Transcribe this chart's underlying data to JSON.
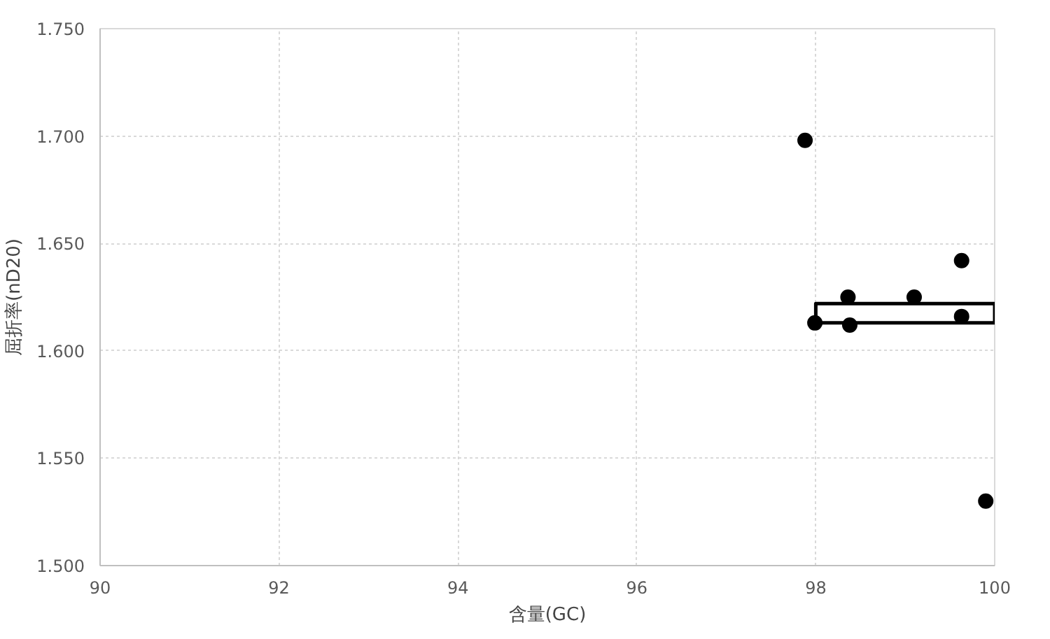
{
  "chart_data": {
    "type": "scatter",
    "xlabel": "含量(GC)",
    "ylabel": "屈折率(nD20)",
    "xlim": [
      90,
      100
    ],
    "xticks": [
      90,
      92,
      94,
      96,
      98,
      100
    ],
    "ylim": [
      1.5,
      1.75
    ],
    "yticks": [
      {
        "value": 1.5,
        "label": "1.500"
      },
      {
        "value": 1.55,
        "label": "1.550"
      },
      {
        "value": 1.6,
        "label": "1.600"
      },
      {
        "value": 1.65,
        "label": "1.650"
      },
      {
        "value": 1.7,
        "label": "1.700"
      },
      {
        "value": 1.75,
        "label": "1.750"
      }
    ],
    "grid": true,
    "marker": "circle",
    "series": [
      {
        "color": "#000000",
        "x": [
          97.88,
          97.99,
          98.36,
          98.38,
          99.1,
          99.63,
          99.63,
          99.9
        ],
        "values": [
          1.698,
          1.613,
          1.625,
          1.612,
          1.625,
          1.642,
          1.616,
          1.53
        ]
      },
      {
        "type": "line",
        "color": "#000000",
        "marker": "none",
        "x": [
          98,
          98,
          100
        ],
        "values": [
          1.613,
          1.622,
          1.622
        ]
      },
      {
        "type": "line",
        "color": "#000000",
        "marker": "none",
        "x": [
          98,
          100,
          100
        ],
        "values": [
          1.613,
          1.613,
          1.622
        ]
      }
    ]
  }
}
